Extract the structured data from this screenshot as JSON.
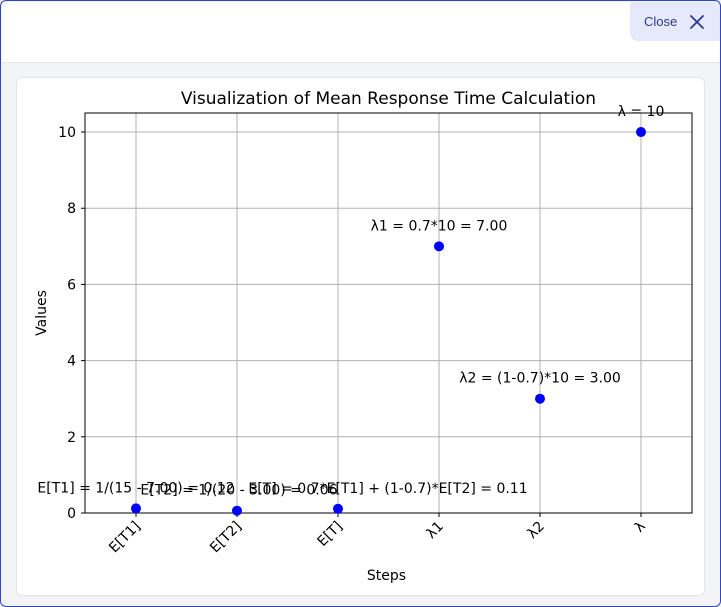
{
  "window": {
    "close_label": "Close",
    "close_icon": "close-icon"
  },
  "chart_data": {
    "type": "scatter",
    "title": "Visualization of Mean Response Time Calculation",
    "xlabel": "Steps",
    "ylabel": "Values",
    "categories": [
      "E[T1]",
      "E[T2]",
      "E[T]",
      "λ1",
      "λ2",
      "λ"
    ],
    "values": [
      0.12,
      0.06,
      0.11,
      7.0,
      3.0,
      10.0
    ],
    "annotations": [
      "E[T1] = 1/(15 - 7.00) = 0.12",
      "E[T2] = 1/(20 - 3.00) = 0.06",
      "E[T] = 0.7*E[T1] + (1-0.7)*E[T2] = 0.11",
      "λ1 = 0.7*10 = 7.00",
      "λ2 = (1-0.7)*10 = 3.00",
      "λ = 10"
    ],
    "ylim": [
      0,
      10.5
    ],
    "yticks": [
      0,
      2,
      4,
      6,
      8,
      10
    ],
    "grid": true,
    "marker_color": "#0000ff"
  }
}
